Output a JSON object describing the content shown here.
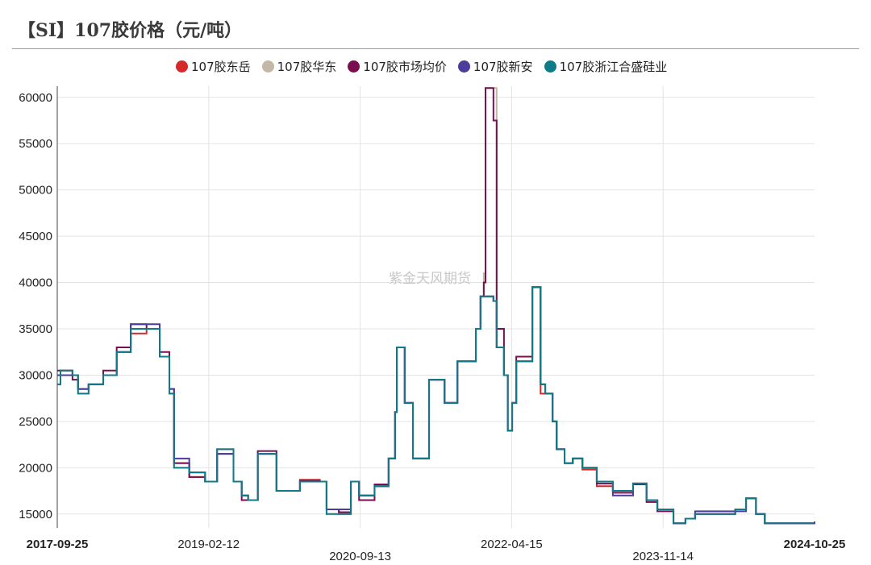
{
  "header": {
    "title": "【SI】107胶价格（元/吨）"
  },
  "watermark": "紫金天风期货",
  "chart_data": {
    "type": "line",
    "title": "【SI】107胶价格（元/吨）",
    "xlabel": "",
    "ylabel": "",
    "ylim": [
      13500,
      61200
    ],
    "yticks": [
      15000,
      20000,
      25000,
      30000,
      35000,
      40000,
      45000,
      50000,
      55000,
      60000
    ],
    "xrange": [
      "2017-09-25",
      "2024-10-25"
    ],
    "xticks": [
      {
        "label": "2017-09-25",
        "bold": true
      },
      {
        "label": "2019-02-12",
        "bold": false
      },
      {
        "label": "2020-09-13",
        "bold": false
      },
      {
        "label": "2022-04-15",
        "bold": false
      },
      {
        "label": "2023-11-14",
        "bold": false
      },
      {
        "label": "2024-10-25",
        "bold": true
      }
    ],
    "grid": true,
    "legend_position": "top",
    "line_style": "step",
    "x": [
      "2017-09-25",
      "2017-10-06",
      "2017-11-16",
      "2017-12-05",
      "2018-01-10",
      "2018-03-01",
      "2018-04-16",
      "2018-06-03",
      "2018-07-27",
      "2018-09-10",
      "2018-10-13",
      "2018-10-29",
      "2018-12-20",
      "2019-02-12",
      "2019-03-25",
      "2019-05-20",
      "2019-06-17",
      "2019-07-09",
      "2019-08-11",
      "2019-09-22",
      "2019-10-14",
      "2020-01-02",
      "2020-03-10",
      "2020-04-02",
      "2020-05-14",
      "2020-06-24",
      "2020-07-22",
      "2020-09-13",
      "2020-10-31",
      "2020-11-22",
      "2020-11-28",
      "2020-12-14",
      "2020-12-25",
      "2021-01-22",
      "2021-02-19",
      "2021-03-18",
      "2021-04-28",
      "2021-05-10",
      "2021-06-12",
      "2021-06-23",
      "2021-08-11",
      "2021-08-25",
      "2021-09-10",
      "2021-09-21",
      "2021-09-27",
      "2021-10-24",
      "2021-11-04",
      "2021-11-29",
      "2021-12-12",
      "2021-12-27",
      "2022-01-10",
      "2022-02-20",
      "2022-03-06",
      "2022-03-25",
      "2022-04-03",
      "2022-04-19",
      "2022-05-14",
      "2022-05-28",
      "2022-06-24",
      "2022-07-22",
      "2022-08-24",
      "2022-10-12",
      "2022-12-06",
      "2023-02-13",
      "2023-03-31",
      "2023-05-07",
      "2023-07-01",
      "2023-08-11",
      "2023-09-13",
      "2023-11-14",
      "2024-01-28",
      "2024-03-05",
      "2024-03-24",
      "2024-04-08",
      "2024-05-08",
      "2024-07-07",
      "2024-10-25"
    ],
    "series": [
      {
        "name": "107胶东岳",
        "color": "#d62a2a",
        "values": [
          29000,
          30500,
          30000,
          28500,
          29000,
          30000,
          32500,
          34500,
          35000,
          32000,
          28000,
          20500,
          19000,
          18500,
          22000,
          18500,
          17000,
          16500,
          21500,
          21500,
          17500,
          18700,
          18500,
          15500,
          15000,
          18500,
          17000,
          18000,
          21000,
          26000,
          33000,
          33000,
          27000,
          21000,
          21000,
          29500,
          29500,
          27000,
          27000,
          31500,
          31500,
          35000,
          38500,
          38500,
          38500,
          38000,
          33000,
          30000,
          24000,
          27000,
          31500,
          31500,
          39500,
          39500,
          28000,
          28000,
          25000,
          22000,
          20500,
          21000,
          19800,
          18000,
          17500,
          18300,
          16500,
          15500,
          14000,
          14500,
          15000,
          15000,
          15500,
          16700,
          16700,
          15000,
          14000,
          14000,
          14200
        ]
      },
      {
        "name": "107胶华东",
        "color": "#c4b7a6",
        "values": [
          29000,
          30500,
          30000,
          28000,
          29000,
          30000,
          32500,
          35000,
          35000,
          32000,
          28000,
          20000,
          19500,
          18500,
          22000,
          18500,
          17000,
          16500,
          21500,
          21500,
          17500,
          18500,
          18500,
          15000,
          15000,
          18500,
          17000,
          18000,
          21000,
          26000,
          33000,
          33000,
          27000,
          21000,
          21000,
          29500,
          29500,
          27000,
          27000,
          31500,
          31500,
          35000,
          38500,
          41000,
          61000,
          61000,
          33000,
          30000,
          24000,
          27000,
          31500,
          31500,
          39500,
          39500,
          29000,
          28000,
          25000,
          22000,
          20500,
          21000,
          20000,
          18500,
          17500,
          18300,
          16500,
          15500,
          14000,
          14500,
          15000,
          15000,
          15500,
          16700,
          16700,
          15000,
          14000,
          14000,
          14000
        ]
      },
      {
        "name": "107胶市场均价",
        "color": "#7a0f4f",
        "values": [
          30500,
          30500,
          29500,
          28500,
          29000,
          30500,
          33000,
          35500,
          35000,
          32500,
          28500,
          20500,
          19000,
          18500,
          21500,
          18500,
          16500,
          16500,
          21800,
          21800,
          17500,
          18600,
          18500,
          15500,
          15200,
          18500,
          16500,
          18200,
          21000,
          26000,
          33000,
          33000,
          27000,
          21000,
          21000,
          29500,
          29500,
          27000,
          27000,
          31500,
          31500,
          35000,
          38500,
          40000,
          61000,
          57500,
          35000,
          30000,
          24000,
          27000,
          32000,
          32000,
          39500,
          39500,
          29000,
          28000,
          25000,
          22000,
          20500,
          21000,
          20000,
          18300,
          17300,
          18200,
          16300,
          15300,
          14000,
          14500,
          15000,
          15000,
          15500,
          16700,
          16700,
          15000,
          14000,
          14000,
          14000
        ]
      },
      {
        "name": "107胶新安",
        "color": "#4a3d9c",
        "values": [
          30000,
          30000,
          30000,
          28500,
          29000,
          30000,
          32500,
          35500,
          35500,
          32000,
          28500,
          21000,
          19500,
          18500,
          21500,
          18500,
          17000,
          16500,
          21500,
          21500,
          17500,
          18500,
          18500,
          15500,
          15500,
          18500,
          17000,
          18000,
          21000,
          26000,
          33000,
          33000,
          27000,
          21000,
          21000,
          29500,
          29500,
          27000,
          27000,
          31500,
          31500,
          35000,
          38500,
          38500,
          38500,
          38000,
          33000,
          30000,
          24000,
          27000,
          31500,
          31500,
          39500,
          39500,
          29000,
          28000,
          25000,
          22000,
          20500,
          21000,
          20000,
          18500,
          17000,
          18300,
          16500,
          15500,
          14000,
          14500,
          15300,
          15300,
          15300,
          16700,
          16700,
          15000,
          14000,
          14000,
          14200
        ]
      },
      {
        "name": "107胶浙江合盛硅业",
        "color": "#0e7c88",
        "values": [
          29000,
          30500,
          30000,
          28000,
          29000,
          30000,
          32500,
          35000,
          35000,
          32000,
          28000,
          20000,
          19500,
          18500,
          22000,
          18500,
          17000,
          16500,
          21500,
          21500,
          17500,
          18500,
          18500,
          15000,
          15000,
          18500,
          17000,
          18000,
          21000,
          26000,
          33000,
          33000,
          27000,
          21000,
          21000,
          29500,
          29500,
          27000,
          27000,
          31500,
          31500,
          35000,
          38500,
          38500,
          38500,
          38000,
          33000,
          30000,
          24000,
          27000,
          31500,
          31500,
          39500,
          39500,
          29000,
          28000,
          25000,
          22000,
          20500,
          21000,
          20000,
          18500,
          17500,
          18300,
          16500,
          15500,
          14000,
          14500,
          15000,
          15000,
          15500,
          16700,
          16700,
          15000,
          14000,
          14000,
          14000
        ]
      }
    ]
  }
}
